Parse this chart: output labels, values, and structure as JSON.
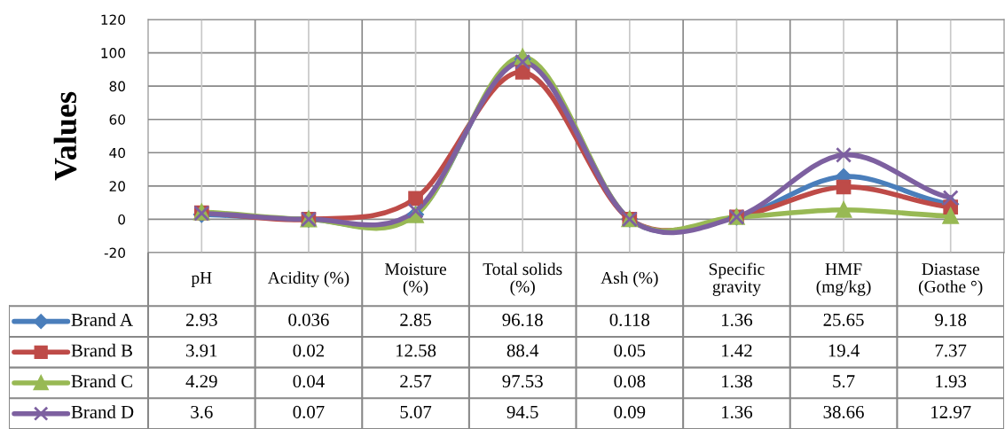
{
  "chart_data": {
    "type": "line",
    "ylabel": "Values",
    "categories": [
      "pH",
      "Acidity (%)",
      "Moisture\n(%)",
      "Total solids\n(%)",
      "Ash (%)",
      "Specific\ngravity",
      "HMF\n(mg/kg)",
      "Diastase\n(Gothe °)"
    ],
    "series": [
      {
        "name": "Brand A",
        "color": "#4a7ebb",
        "marker": "diamond",
        "values": [
          2.93,
          0.036,
          2.85,
          96.18,
          0.118,
          1.36,
          25.65,
          9.18
        ]
      },
      {
        "name": "Brand B",
        "color": "#be4b48",
        "marker": "square",
        "values": [
          3.91,
          0.02,
          12.58,
          88.4,
          0.05,
          1.42,
          19.4,
          7.37
        ]
      },
      {
        "name": "Brand C",
        "color": "#98b954",
        "marker": "triangle",
        "values": [
          4.29,
          0.04,
          2.57,
          97.53,
          0.08,
          1.38,
          5.7,
          1.93
        ]
      },
      {
        "name": "Brand D",
        "color": "#7d60a0",
        "marker": "cross",
        "values": [
          3.6,
          0.07,
          5.07,
          94.5,
          0.09,
          1.36,
          38.66,
          12.97
        ]
      }
    ],
    "ylim": [
      -20,
      120
    ],
    "yticks": [
      -20,
      0,
      20,
      40,
      60,
      80,
      100,
      120
    ],
    "grid": true,
    "data_labels": true,
    "legend": "bottom left",
    "line_style": "solid"
  }
}
